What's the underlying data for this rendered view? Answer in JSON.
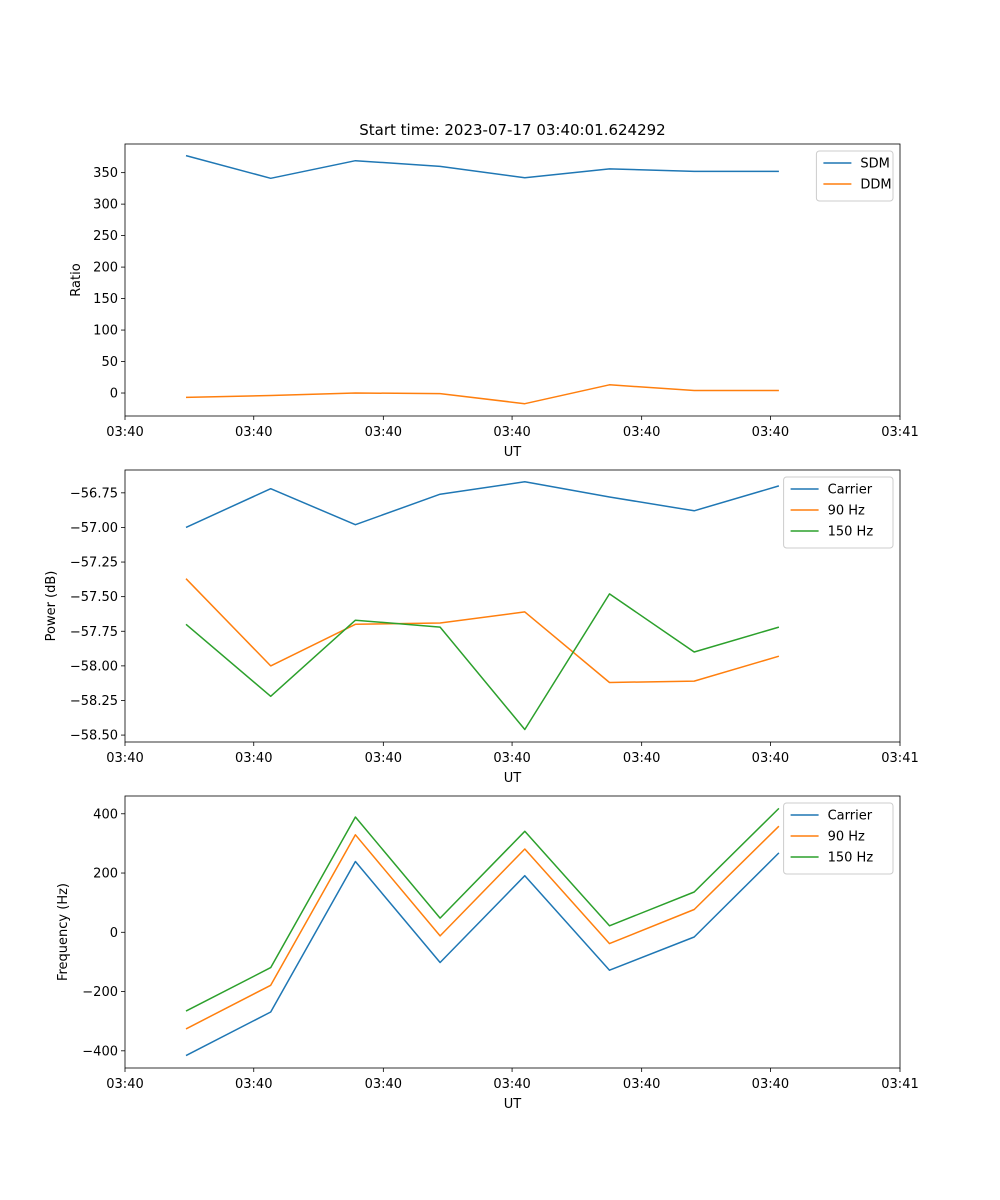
{
  "figure_title": "Start time: 2023-07-17 03:40:01.624292",
  "colors": {
    "c0": "#1f77b4",
    "c1": "#ff7f0e",
    "c2": "#2ca02c"
  },
  "chart_data": [
    {
      "type": "line",
      "title": "Start time: 2023-07-17 03:40:01.624292",
      "xlabel": "UT",
      "ylabel": "Ratio",
      "x_positions": [
        1,
        2,
        3,
        4,
        5,
        6,
        7,
        8
      ],
      "xlim": [
        0.28,
        9.43
      ],
      "x_ticks": [
        0.28,
        1.8,
        3.33,
        4.85,
        6.38,
        7.9,
        9.43
      ],
      "x_tick_labels": [
        "03:40",
        "03:40",
        "03:40",
        "03:40",
        "03:40",
        "03:40",
        "03:41"
      ],
      "ylim": [
        -36.5,
        395.5
      ],
      "y_ticks": [
        0,
        50,
        100,
        150,
        200,
        250,
        300,
        350
      ],
      "y_tick_labels": [
        "0",
        "50",
        "100",
        "150",
        "200",
        "250",
        "300",
        "350"
      ],
      "legend_position": "top-right",
      "series": [
        {
          "name": "SDM",
          "color": "#1f77b4",
          "values": [
            377,
            341,
            369,
            360,
            342,
            356,
            352,
            352
          ]
        },
        {
          "name": "DDM",
          "color": "#ff7f0e",
          "values": [
            -7,
            -4,
            0,
            -1,
            -17,
            13,
            4,
            4
          ]
        }
      ]
    },
    {
      "type": "line",
      "title": "",
      "xlabel": "UT",
      "ylabel": "Power (dB)",
      "x_positions": [
        1,
        2,
        3,
        4,
        5,
        6,
        7,
        8
      ],
      "xlim": [
        0.28,
        9.43
      ],
      "x_ticks": [
        0.28,
        1.8,
        3.33,
        4.85,
        6.38,
        7.9,
        9.43
      ],
      "x_tick_labels": [
        "03:40",
        "03:40",
        "03:40",
        "03:40",
        "03:40",
        "03:40",
        "03:41"
      ],
      "ylim": [
        -58.55,
        -56.585
      ],
      "y_ticks": [
        -58.5,
        -58.25,
        -58.0,
        -57.75,
        -57.5,
        -57.25,
        -57.0,
        -56.75
      ],
      "y_tick_labels": [
        "−58.50",
        "−58.25",
        "−58.00",
        "−57.75",
        "−57.50",
        "−57.25",
        "−57.00",
        "−56.75"
      ],
      "legend_position": "top-right",
      "series": [
        {
          "name": "Carrier",
          "color": "#1f77b4",
          "values": [
            -57.0,
            -56.72,
            -56.98,
            -56.76,
            -56.67,
            -56.78,
            -56.88,
            -56.7
          ]
        },
        {
          "name": "90 Hz",
          "color": "#ff7f0e",
          "values": [
            -57.37,
            -58.0,
            -57.7,
            -57.69,
            -57.61,
            -58.12,
            -58.11,
            -57.93
          ]
        },
        {
          "name": "150 Hz",
          "color": "#2ca02c",
          "values": [
            -57.7,
            -58.22,
            -57.67,
            -57.72,
            -58.46,
            -57.48,
            -57.9,
            -57.72
          ]
        }
      ]
    },
    {
      "type": "line",
      "title": "",
      "xlabel": "UT",
      "ylabel": "Frequency (Hz)",
      "x_positions": [
        1,
        2,
        3,
        4,
        5,
        6,
        7,
        8
      ],
      "xlim": [
        0.28,
        9.43
      ],
      "x_ticks": [
        0.28,
        1.8,
        3.33,
        4.85,
        6.38,
        7.9,
        9.43
      ],
      "x_tick_labels": [
        "03:40",
        "03:40",
        "03:40",
        "03:40",
        "03:40",
        "03:40",
        "03:41"
      ],
      "ylim": [
        -458,
        460
      ],
      "y_ticks": [
        -400,
        -200,
        0,
        200,
        400
      ],
      "y_tick_labels": [
        "−400",
        "−200",
        "0",
        "200",
        "400"
      ],
      "legend_position": "top-right",
      "series": [
        {
          "name": "Carrier",
          "color": "#1f77b4",
          "values": [
            -416,
            -269,
            239,
            -102,
            191,
            -128,
            -16,
            268
          ]
        },
        {
          "name": "90 Hz",
          "color": "#ff7f0e",
          "values": [
            -326,
            -179,
            329,
            -12,
            281,
            -38,
            77,
            358
          ]
        },
        {
          "name": "150 Hz",
          "color": "#2ca02c",
          "values": [
            -266,
            -119,
            389,
            48,
            341,
            22,
            136,
            418
          ]
        }
      ]
    }
  ]
}
